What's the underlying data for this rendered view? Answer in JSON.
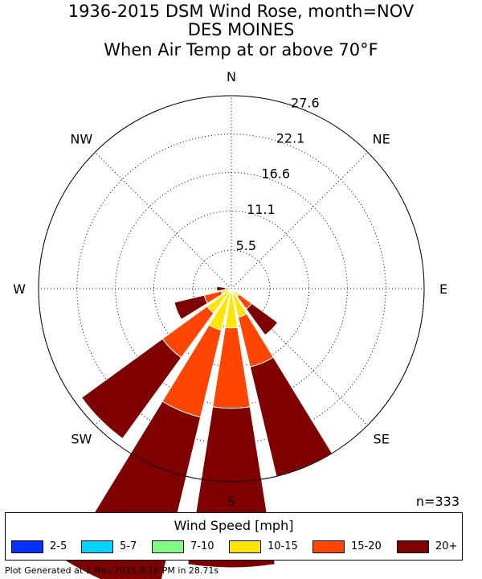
{
  "title": {
    "line1": "1936-2015 DSM Wind Rose, month=NOV",
    "line2": "DES MOINES",
    "line3": "When  Air Temp at or above 70°F"
  },
  "count": "n=333",
  "footer": "Plot Generated at 1 Nov 2015 8:16 PM in 28.71s",
  "chart_data": {
    "type": "windrose",
    "directions": [
      "N",
      "NNE",
      "NE",
      "ENE",
      "E",
      "ESE",
      "SE",
      "SSE",
      "S",
      "SSW",
      "SW",
      "WSW",
      "W",
      "WNW",
      "NW",
      "NNW"
    ],
    "compass_labels": [
      "N",
      "NE",
      "E",
      "SE",
      "S",
      "SW",
      "W",
      "NW"
    ],
    "radial_ticks": [
      "5.5",
      "11.1",
      "16.6",
      "22.1",
      "27.6"
    ],
    "rmax": 27.6,
    "speed_bins": [
      "2-5",
      "5-7",
      "7-10",
      "10-15",
      "15-20",
      "20+"
    ],
    "colors": [
      "#0033ff",
      "#00d4ff",
      "#7fff7f",
      "#ffe600",
      "#ff4500",
      "#800000"
    ],
    "series": [
      {
        "name": "2-5",
        "values": [
          0,
          0,
          0,
          0,
          0,
          0,
          0,
          0.1,
          0.1,
          0.1,
          0.1,
          0.1,
          0,
          0,
          0,
          0
        ]
      },
      {
        "name": "5-7",
        "values": [
          0,
          0,
          0,
          0,
          0,
          0,
          0.1,
          0.3,
          0.2,
          0.1,
          0.1,
          0,
          0,
          0,
          0,
          0
        ]
      },
      {
        "name": "7-10",
        "values": [
          0,
          0,
          0,
          0,
          0,
          0,
          0.3,
          0.5,
          0.3,
          0.3,
          0.3,
          0.2,
          0,
          0,
          0,
          0
        ]
      },
      {
        "name": "10-15",
        "values": [
          0,
          0,
          0,
          0,
          0,
          0,
          1.0,
          3.3,
          5.0,
          5.6,
          3.8,
          1.2,
          0.2,
          0,
          0,
          0
        ]
      },
      {
        "name": "15-20",
        "values": [
          0,
          0,
          0,
          0,
          0,
          0,
          2.2,
          7.3,
          11.5,
          12.8,
          7.9,
          2.5,
          0.7,
          0,
          0,
          0
        ]
      },
      {
        "name": "20+",
        "values": [
          0,
          0,
          0,
          0,
          0,
          0,
          4.6,
          16.1,
          22.8,
          26.7,
          14.3,
          4.4,
          1.2,
          0,
          0,
          0
        ]
      }
    ]
  },
  "legend": {
    "title": "Wind Speed [mph]",
    "items": [
      {
        "label": "2-5",
        "color": "#0033ff"
      },
      {
        "label": "5-7",
        "color": "#00d4ff"
      },
      {
        "label": "7-10",
        "color": "#7fff7f"
      },
      {
        "label": "10-15",
        "color": "#ffe600"
      },
      {
        "label": "15-20",
        "color": "#ff4500"
      },
      {
        "label": "20+",
        "color": "#800000"
      }
    ]
  }
}
